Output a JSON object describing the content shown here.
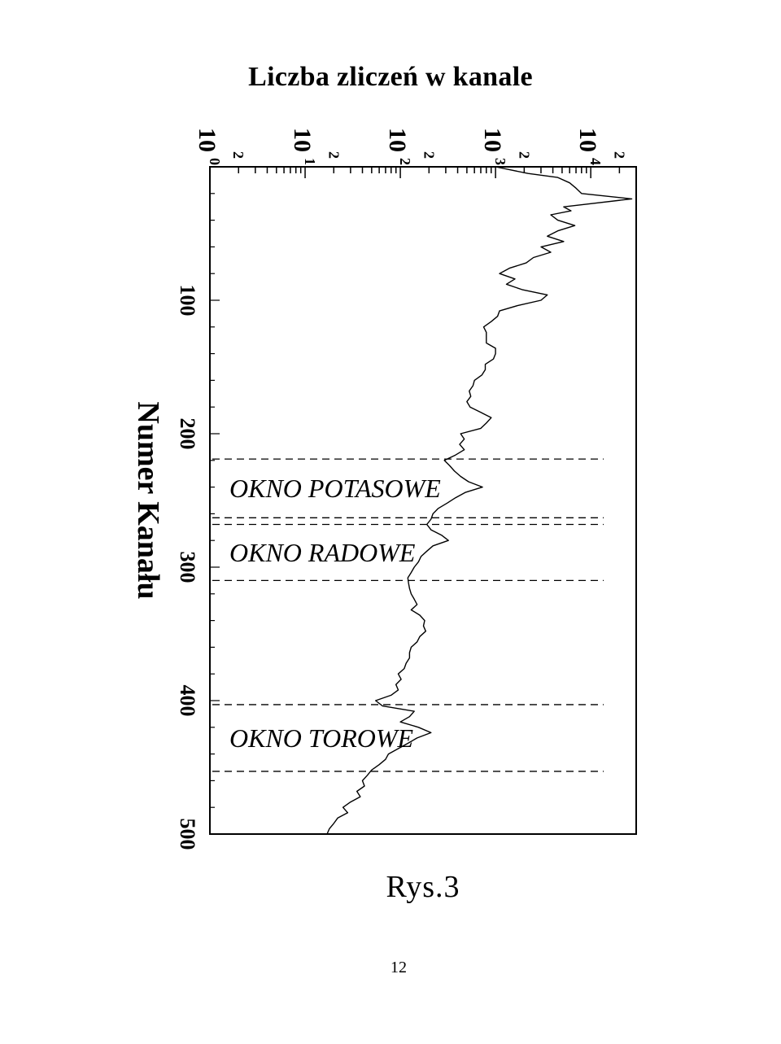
{
  "page": {
    "title": "Liczba zliczeń w kanale",
    "side_title": "Numer Kanału",
    "caption": "Rys.3",
    "page_number": "12"
  },
  "chart_data": {
    "type": "line",
    "title": "Liczba zliczeń w kanale",
    "xlabel": "Numer Kanału",
    "ylabel": "Liczba zliczeń w kanale",
    "x_axis_orientation": "vertical, increasing downward",
    "y_axis_orientation": "horizontal, logarithmic",
    "y_scale": "log",
    "xlim": [
      0,
      500
    ],
    "ylim": [
      1,
      30000
    ],
    "x_ticks": [
      {
        "value": 100,
        "label": "100"
      },
      {
        "value": 200,
        "label": "200"
      },
      {
        "value": 300,
        "label": "300"
      },
      {
        "value": 400,
        "label": "400"
      },
      {
        "value": 500,
        "label": "500"
      }
    ],
    "y_ticks": [
      {
        "value": 1,
        "base": "10",
        "exp": "0"
      },
      {
        "value": 10,
        "base": "10",
        "exp": "1"
      },
      {
        "value": 100,
        "base": "10",
        "exp": "2"
      },
      {
        "value": 1000,
        "base": "10",
        "exp": "3"
      },
      {
        "value": 10000,
        "base": "10",
        "exp": "4"
      }
    ],
    "y_minor_labels": [
      {
        "value": 2,
        "label": "2"
      },
      {
        "value": 20,
        "label": "2"
      },
      {
        "value": 200,
        "label": "2"
      },
      {
        "value": 2000,
        "label": "2"
      },
      {
        "value": 20000,
        "label": "2"
      }
    ],
    "windows": [
      {
        "label": "OKNO POTASOWE",
        "start": 219,
        "end": 263
      },
      {
        "label": "OKNO RADOWE",
        "start": 268,
        "end": 310
      },
      {
        "label": "OKNO TOROWE",
        "start": 403,
        "end": 453
      }
    ],
    "series": [
      {
        "x": [
          0,
          5,
          8,
          12,
          16,
          20,
          24,
          28,
          30,
          33,
          36,
          40,
          44,
          48,
          52,
          56,
          60,
          64,
          68,
          72,
          76,
          80,
          84,
          88,
          92,
          96,
          100,
          104,
          108,
          112,
          116,
          120,
          124,
          128,
          132,
          136,
          140,
          144,
          148,
          152,
          156,
          160,
          164,
          168,
          172,
          176,
          180,
          184,
          188,
          192,
          196,
          200,
          204,
          208,
          212,
          216,
          220,
          224,
          228,
          232,
          236,
          240,
          244,
          248,
          252,
          256,
          260,
          264,
          268,
          272,
          276,
          280,
          284,
          288,
          292,
          296,
          300,
          304,
          308,
          312,
          316,
          320,
          324,
          328,
          332,
          336,
          340,
          344,
          348,
          352,
          356,
          360,
          364,
          368,
          372,
          376,
          380,
          384,
          388,
          392,
          396,
          400,
          404,
          408,
          412,
          416,
          420,
          424,
          428,
          432,
          436,
          440,
          444,
          448,
          452,
          456,
          460,
          464,
          468,
          472,
          476,
          480,
          484,
          488,
          492,
          496,
          500
        ],
        "y": [
          1000,
          2200,
          4500,
          6000,
          7000,
          8000,
          27000,
          9000,
          5200,
          6200,
          3800,
          4500,
          6800,
          4500,
          3500,
          5200,
          3000,
          3800,
          2500,
          2100,
          1400,
          1100,
          1600,
          1300,
          1900,
          3500,
          3000,
          1700,
          1100,
          1050,
          900,
          750,
          800,
          800,
          800,
          1000,
          1000,
          950,
          780,
          780,
          720,
          600,
          580,
          530,
          550,
          500,
          540,
          700,
          900,
          800,
          700,
          430,
          470,
          420,
          470,
          380,
          290,
          330,
          370,
          430,
          520,
          730,
          480,
          380,
          310,
          250,
          220,
          210,
          190,
          210,
          270,
          320,
          220,
          190,
          165,
          155,
          140,
          130,
          120,
          122,
          125,
          130,
          140,
          150,
          130,
          160,
          180,
          175,
          185,
          160,
          150,
          130,
          125,
          125,
          115,
          110,
          95,
          102,
          90,
          95,
          80,
          55,
          65,
          140,
          125,
          100,
          155,
          210,
          150,
          120,
          95,
          75,
          70,
          60,
          50,
          45,
          40,
          42,
          35,
          38,
          30,
          25,
          28,
          22,
          20,
          18,
          17
        ]
      }
    ]
  }
}
